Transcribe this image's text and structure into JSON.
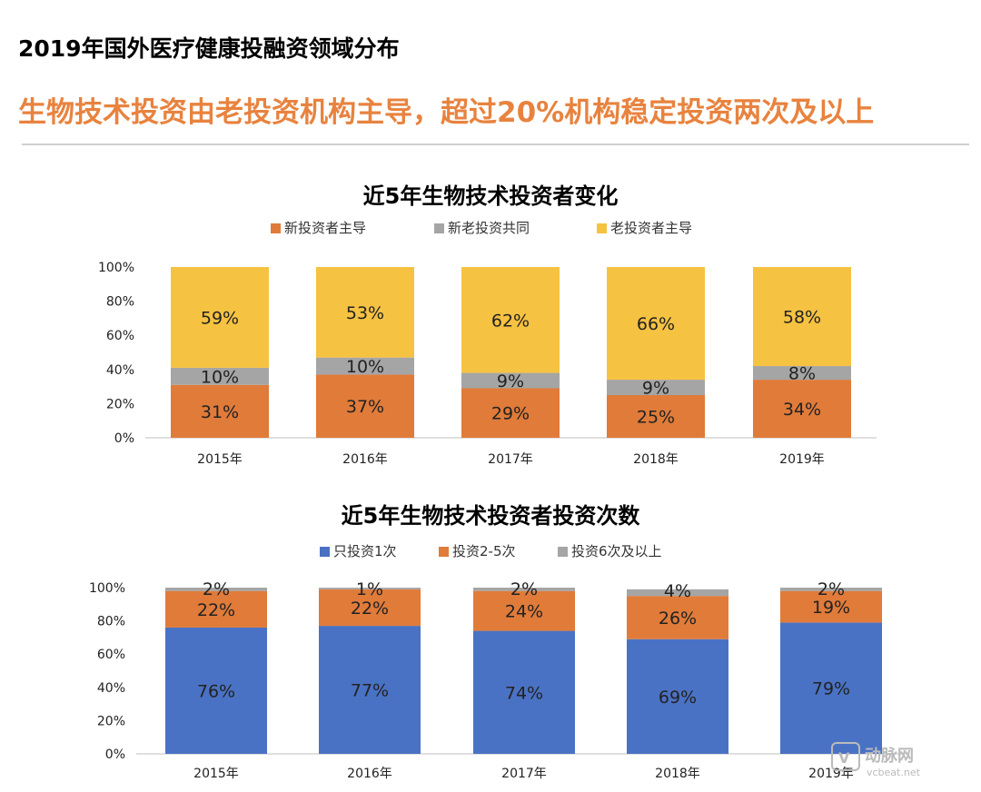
{
  "page": {
    "title": "2019年国外医疗健康投融资领域分布",
    "headline": "生物技术投资由老投资机构主导，超过20%机构稳定投资两次及以上",
    "watermark": "动脉网",
    "watermark_url": "vcbeat.net"
  },
  "colors": {
    "headline": "#e8833f",
    "orange": "#e07b3a",
    "gray": "#a5a5a5",
    "yellow": "#f6c242",
    "blue": "#4a72c4"
  },
  "chart_data": [
    {
      "type": "bar",
      "stacked": true,
      "title": "近5年生物技术投资者变化",
      "categories": [
        "2015年",
        "2016年",
        "2017年",
        "2018年",
        "2019年"
      ],
      "series": [
        {
          "name": "新投资者主导",
          "color": "#e07b3a",
          "values": [
            31,
            37,
            29,
            25,
            34
          ],
          "labels": [
            "31%",
            "37%",
            "29%",
            "25%",
            "34%"
          ]
        },
        {
          "name": "新老投资共同",
          "color": "#a5a5a5",
          "values": [
            10,
            10,
            9,
            9,
            8
          ],
          "labels": [
            "10%",
            "10%",
            "9%",
            "9%",
            "8%"
          ]
        },
        {
          "name": "老投资者主导",
          "color": "#f6c242",
          "values": [
            59,
            53,
            62,
            66,
            58
          ],
          "labels": [
            "59%",
            "53%",
            "62%",
            "66%",
            "58%"
          ]
        }
      ],
      "yticks": [
        "0%",
        "20%",
        "40%",
        "60%",
        "80%",
        "100%"
      ],
      "ylim": [
        0,
        100
      ],
      "legend": "top",
      "grid": false
    },
    {
      "type": "bar",
      "stacked": true,
      "title": "近5年生物技术投资者投资次数",
      "categories": [
        "2015年",
        "2016年",
        "2017年",
        "2018年",
        "2019年"
      ],
      "series": [
        {
          "name": "只投资1次",
          "color": "#4a72c4",
          "values": [
            76,
            77,
            74,
            69,
            79
          ],
          "labels": [
            "76%",
            "77%",
            "74%",
            "69%",
            "79%"
          ]
        },
        {
          "name": "投资2-5次",
          "color": "#e07b3a",
          "values": [
            22,
            22,
            24,
            26,
            19
          ],
          "labels": [
            "22%",
            "22%",
            "24%",
            "26%",
            "19%"
          ]
        },
        {
          "name": "投资6次及以上",
          "color": "#a5a5a5",
          "values": [
            2,
            1,
            2,
            4,
            2
          ],
          "labels": [
            "2%",
            "1%",
            "2%",
            "4%",
            "2%"
          ]
        }
      ],
      "yticks": [
        "0%",
        "20%",
        "40%",
        "60%",
        "80%",
        "100%"
      ],
      "ylim": [
        0,
        100
      ],
      "legend": "top",
      "grid": false
    }
  ]
}
